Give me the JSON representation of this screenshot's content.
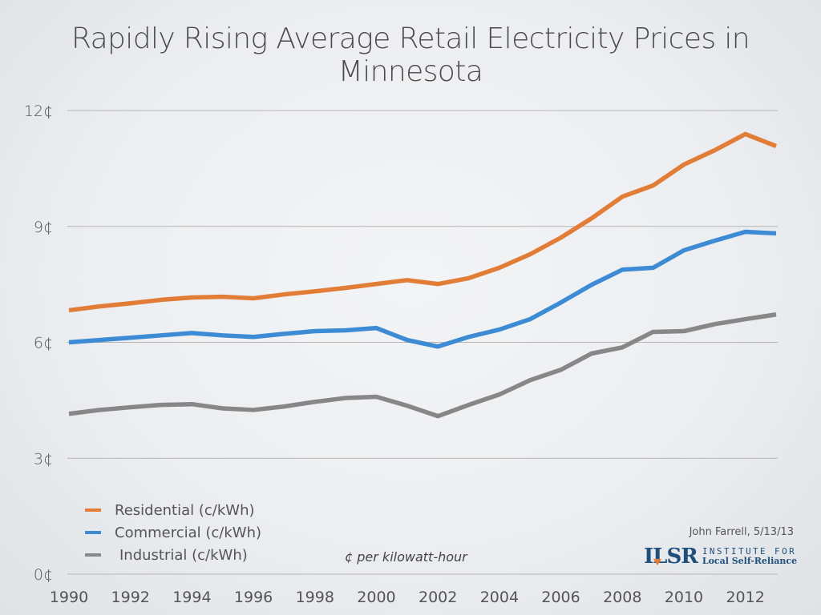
{
  "title": "Rapidly Rising Average Retail Electricity Prices in Minnesota",
  "note": "¢ per kilowatt-hour",
  "credit": "John Farrell, 5/13/13",
  "logo": {
    "mark": "ILSR",
    "line1": "INSTITUTE FOR",
    "line2": "Local Self-Reliance"
  },
  "chart_data": {
    "type": "line",
    "title": "Rapidly Rising Average Retail Electricity Prices in Minnesota",
    "xlabel": "",
    "ylabel": "¢ per kilowatt-hour",
    "x": [
      1990,
      1991,
      1992,
      1993,
      1994,
      1995,
      1996,
      1997,
      1998,
      1999,
      2000,
      2001,
      2002,
      2003,
      2004,
      2005,
      2006,
      2007,
      2008,
      2009,
      2010,
      2011,
      2012,
      2013
    ],
    "xlim": [
      1990,
      2013
    ],
    "ylim": [
      0,
      12
    ],
    "y_ticks": [
      0,
      3,
      6,
      9,
      12
    ],
    "y_tick_labels": [
      "0¢",
      "3¢",
      "6¢",
      "9¢",
      "12¢"
    ],
    "x_ticks": [
      1990,
      1992,
      1994,
      1996,
      1998,
      2000,
      2002,
      2004,
      2006,
      2008,
      2010,
      2012
    ],
    "x_tick_labels": [
      "1990",
      "1992",
      "1994",
      "1996",
      "1998",
      "2000",
      "2002",
      "2004",
      "2006",
      "2008",
      "2010",
      "2012"
    ],
    "grid": true,
    "legend_position": "bottom-left",
    "series": [
      {
        "name": "Residential (c/kWh)",
        "color": "#e27d38",
        "values": [
          6.83,
          6.93,
          7.01,
          7.1,
          7.16,
          7.18,
          7.14,
          7.24,
          7.32,
          7.41,
          7.51,
          7.61,
          7.51,
          7.66,
          7.93,
          8.28,
          8.71,
          9.21,
          9.77,
          10.06,
          10.6,
          10.97,
          11.39,
          11.08
        ]
      },
      {
        "name": "Commercial (c/kWh)",
        "color": "#3d8bd4",
        "values": [
          6.0,
          6.06,
          6.12,
          6.18,
          6.24,
          6.18,
          6.14,
          6.22,
          6.29,
          6.31,
          6.37,
          6.06,
          5.89,
          6.14,
          6.33,
          6.6,
          7.03,
          7.49,
          7.88,
          7.93,
          8.38,
          8.63,
          8.86,
          8.82
        ]
      },
      {
        "name": "Industrial (c/kWh)",
        "color": "#878787",
        "values": [
          4.15,
          4.25,
          4.32,
          4.38,
          4.4,
          4.29,
          4.25,
          4.34,
          4.46,
          4.56,
          4.59,
          4.36,
          4.09,
          4.38,
          4.65,
          5.02,
          5.29,
          5.71,
          5.87,
          6.27,
          6.29,
          6.47,
          6.6,
          6.72
        ]
      }
    ]
  }
}
